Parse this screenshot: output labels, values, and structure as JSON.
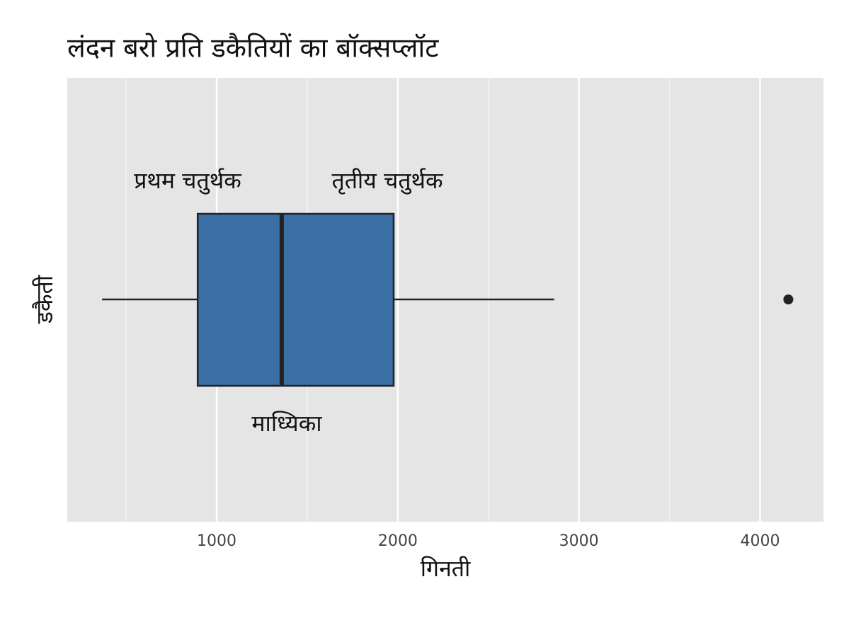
{
  "chart_data": {
    "type": "box",
    "title": "लंदन बरो प्रति डकैतियों का बॉक्सप्लॉट",
    "x_label": "गिनती",
    "y_label": "डकैती",
    "box": {
      "whislo": 367,
      "q1": 895,
      "med": 1359,
      "q3": 1977,
      "whishi": 2863,
      "fliers": [
        4156
      ]
    },
    "color": "#3a6ea5",
    "annotations": [
      "प्रथम चतुर्थक",
      "तृतीय चतुर्थक",
      "माध्यिका"
    ],
    "xlim": [
      175,
      4350
    ],
    "xticks": [
      1000,
      2000,
      3000,
      4000
    ],
    "minor_xticks": [
      500,
      1500,
      2500,
      3500
    ],
    "grid": true
  }
}
